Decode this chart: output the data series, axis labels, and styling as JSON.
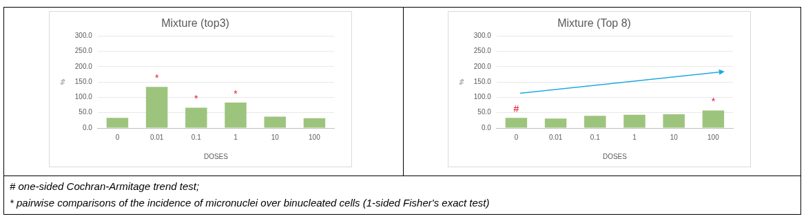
{
  "chart_data": [
    {
      "type": "bar",
      "title": "Mixture (top3)",
      "xlabel": "DOSES",
      "ylabel": "%",
      "categories": [
        "0",
        "0.01",
        "0.1",
        "1",
        "10",
        "100"
      ],
      "values": [
        33,
        134,
        66,
        83,
        37,
        32
      ],
      "color": "#9dc47c",
      "ylim": [
        0,
        300
      ],
      "yticks": [
        {
          "value": 0,
          "label": "0.0"
        },
        {
          "value": 50,
          "label": "50.0"
        },
        {
          "value": 100,
          "label": "100.0"
        },
        {
          "value": 150,
          "label": "150.0"
        },
        {
          "value": 200,
          "label": "200.0"
        },
        {
          "value": 250,
          "label": "250.0"
        },
        {
          "value": 300,
          "label": "300.0"
        }
      ],
      "grid": "y",
      "legend": false,
      "annotations": [
        {
          "text": "*",
          "x": "0.01",
          "y": 134
        },
        {
          "text": "*",
          "x": "0.1",
          "y": 66
        },
        {
          "text": "*",
          "x": "1",
          "y": 83
        }
      ]
    },
    {
      "type": "bar",
      "title": "Mixture (Top 8)",
      "xlabel": "DOSES",
      "ylabel": "%",
      "categories": [
        "0",
        "0.01",
        "0.1",
        "1",
        "10",
        "100"
      ],
      "values": [
        33,
        31,
        40,
        43,
        45,
        57
      ],
      "color": "#9dc47c",
      "ylim": [
        0,
        300
      ],
      "yticks": [
        {
          "value": 0,
          "label": "0.0"
        },
        {
          "value": 50,
          "label": "50.0"
        },
        {
          "value": 100,
          "label": "100.0"
        },
        {
          "value": 150,
          "label": "150.0"
        },
        {
          "value": 200,
          "label": "200.0"
        },
        {
          "value": 250,
          "label": "250.0"
        },
        {
          "value": 300,
          "label": "300.0"
        }
      ],
      "grid": "y",
      "legend": false,
      "annotations": [
        {
          "text": "#",
          "x": "0",
          "y": 33
        },
        {
          "text": "*",
          "x": "100",
          "y": 57
        }
      ]
    },
    {
      "type": "other",
      "annotations": [
        "# one-sided Cochran-Armitage trend test;",
        "* pairwise comparisons of the incidence of micronuclei over binucleated cells (1-sided Fisher's exact test)"
      ]
    }
  ]
}
